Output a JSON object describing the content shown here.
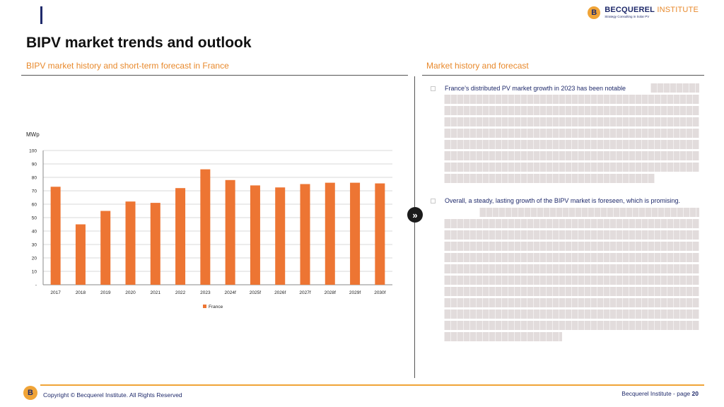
{
  "header": {
    "logo_mark": "B",
    "logo_name": "BECQUEREL",
    "logo_institute": " INSTITUTE",
    "logo_tagline": "Strategy Consulting in Solar PV"
  },
  "page_title": "BIPV market trends and outlook",
  "left_section": {
    "title": "BIPV market history and short-term forecast in France"
  },
  "right_section": {
    "title": "Market history and forecast",
    "bullets": [
      "France’s distributed PV market growth in 2023 has been notable",
      "Overall, a steady, lasting growth of the BIPV market is foreseen, which is promising."
    ]
  },
  "arrow_glyph": "»",
  "chart_data": {
    "type": "bar",
    "ylabel": "MWp",
    "ylim": [
      0,
      100
    ],
    "yticks": [
      0,
      10,
      20,
      30,
      40,
      50,
      60,
      70,
      80,
      90,
      100
    ],
    "ytick_labels": [
      "-",
      "10",
      "20",
      "30",
      "40",
      "50",
      "60",
      "70",
      "80",
      "90",
      "100"
    ],
    "categories": [
      "2017",
      "2018",
      "2019",
      "2020",
      "2021",
      "2022",
      "2023",
      "2024f",
      "2025f",
      "2026f",
      "2027f",
      "2028f",
      "2029f",
      "2030f"
    ],
    "series": [
      {
        "name": "France",
        "color": "#ed7533",
        "values": [
          73,
          45,
          55,
          62,
          61,
          72,
          86,
          78,
          74,
          72.5,
          75,
          76,
          76,
          75.5
        ]
      }
    ],
    "grid": true,
    "legend": "bottom-center"
  },
  "footer": {
    "logo_mark": "B",
    "copyright": "Copyright © Becquerel Institute. All Rights Reserved",
    "page_prefix": "Becquerel Institute - page ",
    "page_number": "20"
  }
}
